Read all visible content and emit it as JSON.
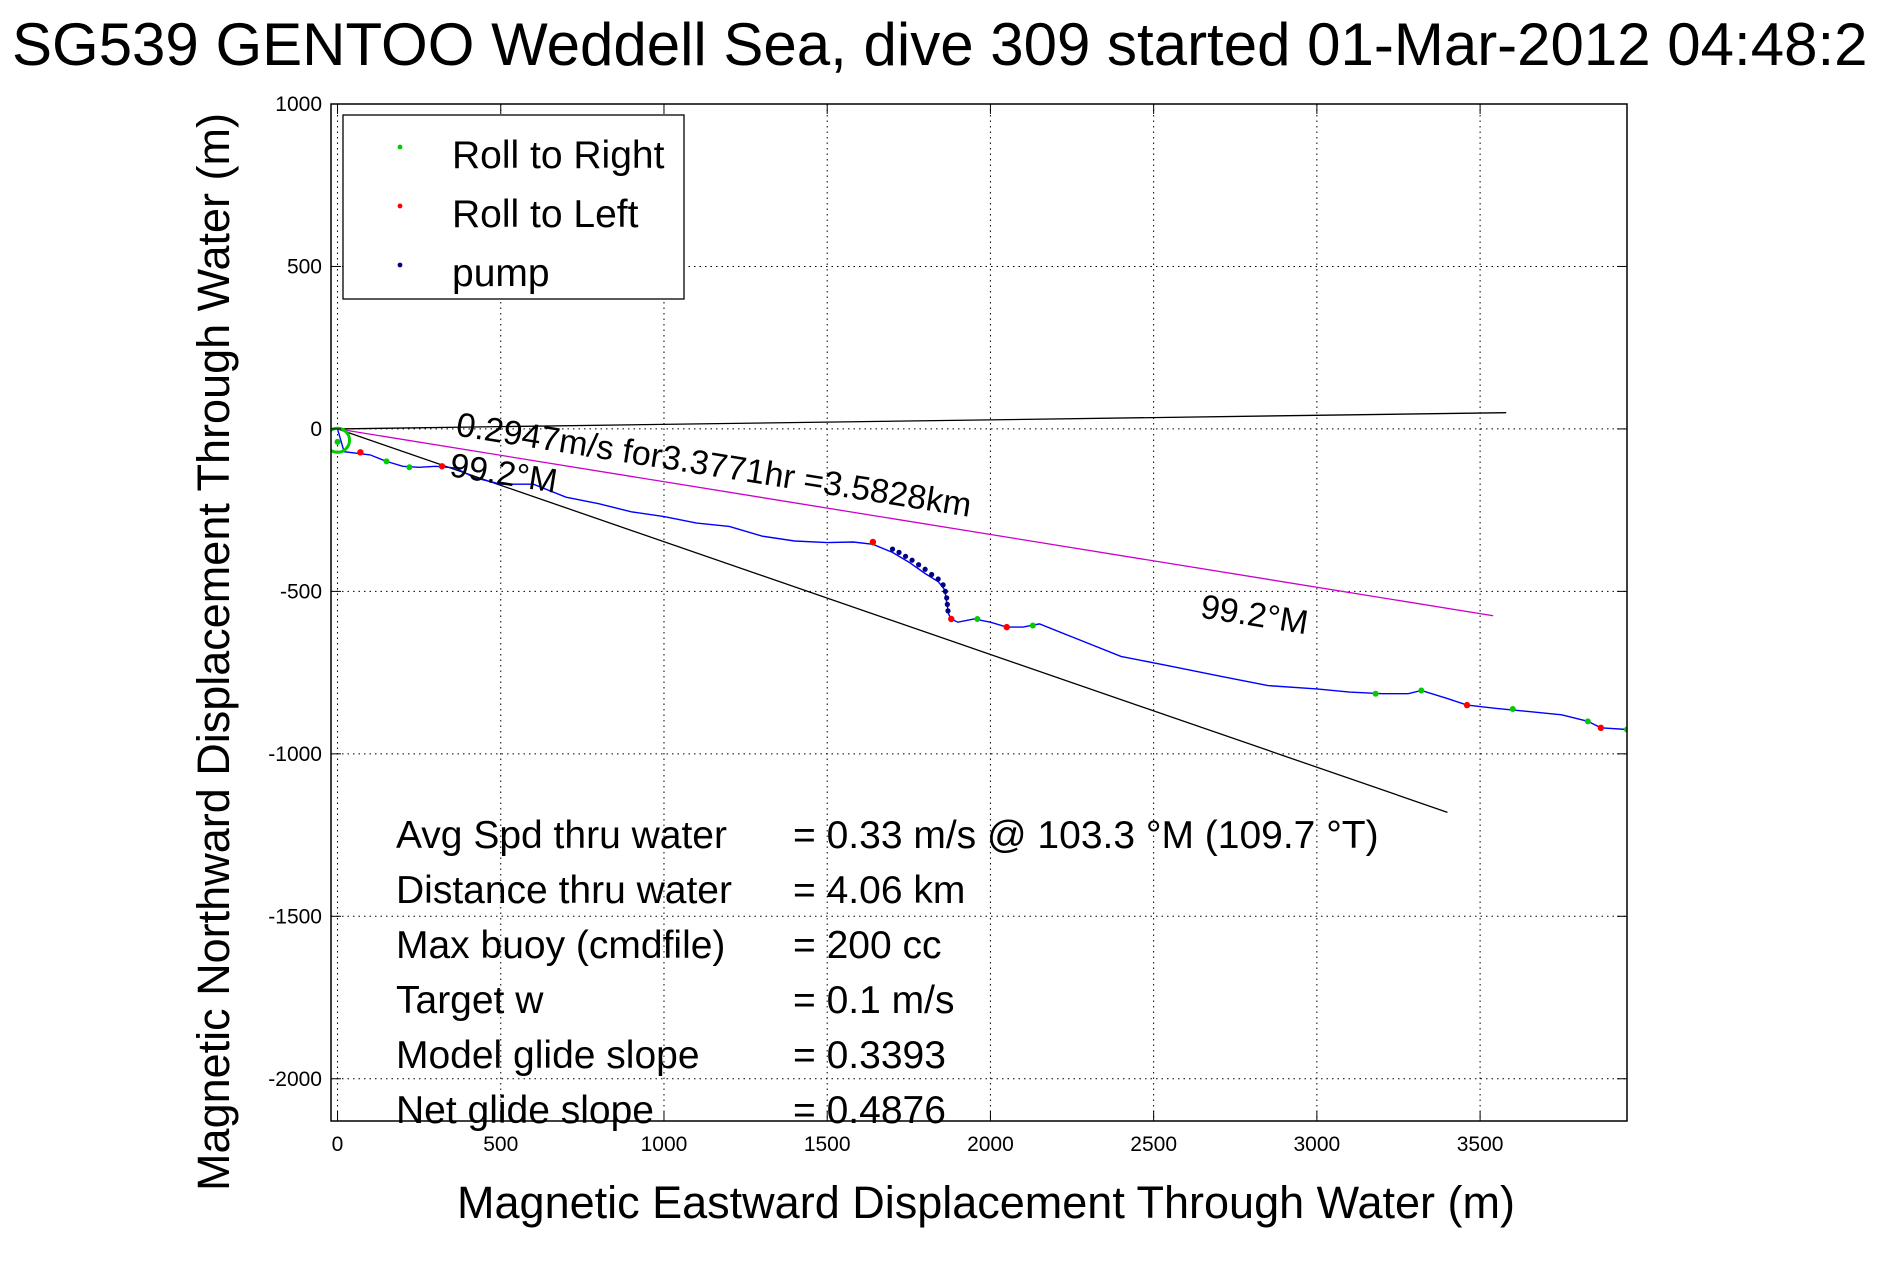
{
  "chart_data": {
    "type": "line",
    "title": "SG539 GENTOO Weddell Sea, dive 309 started 01-Mar-2012 04:48:2",
    "xlabel": "Magnetic Eastward Displacement Through Water (m)",
    "ylabel": "Magnetic Northward Displacement Through Water (m)",
    "xlim": [
      -20,
      3950
    ],
    "ylim": [
      -2130,
      1000
    ],
    "xticks": [
      0,
      500,
      1000,
      1500,
      2000,
      2500,
      3000,
      3500
    ],
    "yticks": [
      1000,
      500,
      0,
      -500,
      -1000,
      -1500,
      -2000
    ],
    "xtick_labels": [
      "0",
      "500",
      "1000",
      "1500",
      "2000",
      "2500",
      "3000",
      "3500"
    ],
    "ytick_labels": [
      "1000",
      "500",
      "0",
      "-500",
      "-1000",
      "-1500",
      "-2000"
    ],
    "grid": true,
    "legend": {
      "placement": "top-left",
      "entries": [
        {
          "label": "Roll to Right",
          "color": "#00cc00"
        },
        {
          "label": "Roll to Left",
          "color": "#ff0000"
        },
        {
          "label": "pump",
          "color": "#000080"
        }
      ]
    },
    "track": {
      "color": "#0000ff",
      "x": [
        0,
        20,
        60,
        100,
        150,
        200,
        250,
        300,
        360,
        420,
        500,
        600,
        700,
        800,
        900,
        1000,
        1100,
        1200,
        1300,
        1400,
        1500,
        1580,
        1640,
        1700,
        1750,
        1800,
        1840,
        1860,
        1868,
        1872,
        1880,
        1900,
        1950,
        2000,
        2050,
        2100,
        2150,
        2250,
        2400,
        2550,
        2700,
        2850,
        3000,
        3100,
        3200,
        3280,
        3320,
        3400,
        3460,
        3550,
        3650,
        3750,
        3830,
        3870,
        3950
      ],
      "y": [
        0,
        -70,
        -75,
        -80,
        -100,
        -115,
        -118,
        -115,
        -120,
        -150,
        -170,
        -170,
        -210,
        -230,
        -255,
        -270,
        -290,
        -300,
        -330,
        -345,
        -350,
        -348,
        -355,
        -380,
        -410,
        -445,
        -470,
        -495,
        -545,
        -570,
        -585,
        -595,
        -585,
        -595,
        -610,
        -610,
        -600,
        -640,
        -700,
        -730,
        -760,
        -790,
        -800,
        -810,
        -815,
        -815,
        -805,
        -830,
        -850,
        -860,
        -870,
        -880,
        -900,
        -920,
        -925
      ]
    },
    "roll_right_points": {
      "color": "#00cc00",
      "x": [
        0,
        150,
        220,
        1640,
        1960,
        2130,
        3180,
        3320,
        3600,
        3830,
        3950
      ],
      "y": [
        -40,
        -100,
        -118,
        -350,
        -585,
        -605,
        -815,
        -805,
        -862,
        -900,
        -925
      ]
    },
    "roll_left_points": {
      "color": "#ff0000",
      "x": [
        70,
        320,
        1640,
        1880,
        2050,
        3460,
        3870
      ],
      "y": [
        -72,
        -115,
        -348,
        -585,
        -610,
        -850,
        -920
      ]
    },
    "pump_points": {
      "color": "#000080",
      "x": [
        1700,
        1720,
        1740,
        1760,
        1780,
        1800,
        1820,
        1840,
        1855,
        1862,
        1866,
        1868,
        1870
      ],
      "y": [
        -370,
        -380,
        -392,
        -404,
        -418,
        -432,
        -448,
        -462,
        -480,
        -500,
        -520,
        -540,
        -560
      ]
    },
    "lines": [
      {
        "name": "line_to_end",
        "color": "#000000",
        "x": [
          0,
          3580
        ],
        "y": [
          0,
          50
        ]
      },
      {
        "name": "heading_line",
        "color": "#000000",
        "x": [
          0,
          3400
        ],
        "y": [
          0,
          -1180
        ]
      },
      {
        "name": "current_line",
        "color": "#cc00cc",
        "x": [
          0,
          3540
        ],
        "y": [
          0,
          -575
        ]
      }
    ],
    "annotations": [
      {
        "id": "speed",
        "text": "0.2947m/s for3.3771hr =3.5828km",
        "x": 360,
        "y": -20,
        "rotate": 9
      },
      {
        "id": "heading_near",
        "text": "99.2°M",
        "x": 340,
        "y": -145,
        "rotate": 9
      },
      {
        "id": "heading_far",
        "text": "99.2°M",
        "x": 2640,
        "y": -580,
        "rotate": 9
      }
    ],
    "stats": [
      {
        "label": "Avg Spd thru water",
        "value": "=  0.33 m/s @ 103.3 °M (109.7 °T)"
      },
      {
        "label": "Distance thru water",
        "value": "=  4.06 km"
      },
      {
        "label": "Max buoy (cmdfile)",
        "value": "= 200 cc"
      },
      {
        "label": "Target w",
        "value": "= 0.1 m/s"
      },
      {
        "label": "Model glide slope",
        "value": "= 0.3393"
      },
      {
        "label": "Net glide slope",
        "value": "= 0.4876"
      }
    ],
    "start_marker": {
      "x": 0,
      "y": -35,
      "color": "#00cc00"
    }
  }
}
